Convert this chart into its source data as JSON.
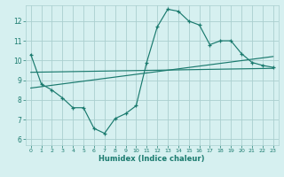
{
  "title": "",
  "xlabel": "Humidex (Indice chaleur)",
  "bg_color": "#d6f0f0",
  "grid_color": "#aacfcf",
  "line_color": "#1a7a6e",
  "x_ticks": [
    0,
    1,
    2,
    3,
    4,
    5,
    6,
    7,
    8,
    9,
    10,
    11,
    12,
    13,
    14,
    15,
    16,
    17,
    18,
    19,
    20,
    21,
    22,
    23
  ],
  "y_ticks": [
    6,
    7,
    8,
    9,
    10,
    11,
    12
  ],
  "ylim": [
    5.7,
    12.8
  ],
  "xlim": [
    -0.5,
    23.5
  ],
  "line1_x": [
    0,
    1,
    2,
    3,
    4,
    5,
    6,
    7,
    8,
    9,
    10,
    11,
    12,
    13,
    14,
    15,
    16,
    17,
    18,
    19,
    20,
    21,
    22,
    23
  ],
  "line1_y": [
    10.3,
    8.8,
    8.5,
    8.1,
    7.6,
    7.6,
    6.55,
    6.3,
    7.05,
    7.3,
    7.7,
    9.9,
    11.7,
    12.6,
    12.5,
    12.0,
    11.8,
    10.8,
    11.0,
    11.0,
    10.35,
    9.9,
    9.75,
    9.65
  ],
  "line2_x": [
    0,
    23
  ],
  "line2_y": [
    8.6,
    10.2
  ],
  "line3_x": [
    0,
    23
  ],
  "line3_y": [
    9.4,
    9.6
  ]
}
